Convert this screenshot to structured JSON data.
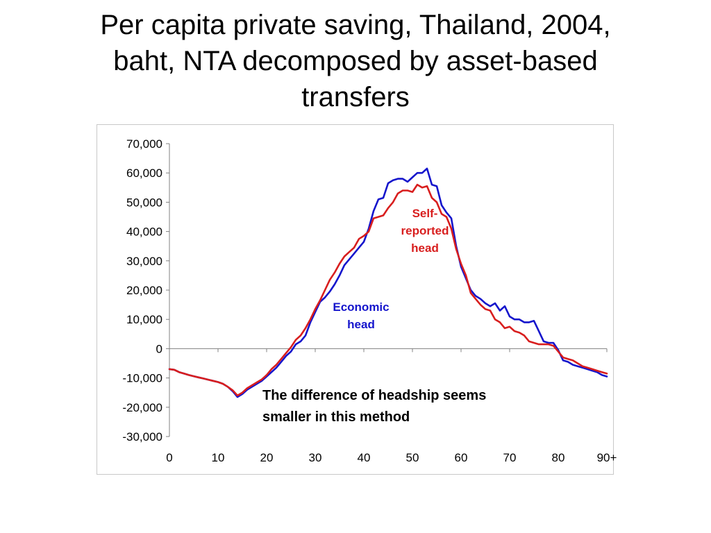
{
  "title_lines": [
    "Per capita private saving, Thailand, 2004,",
    "baht, NTA decomposed by asset-based",
    "transfers"
  ],
  "chart_data": {
    "type": "line",
    "title": "Per capita private saving, Thailand, 2004, baht, NTA decomposed by asset-based transfers",
    "xlabel": "",
    "ylabel": "",
    "xlim": [
      0,
      90
    ],
    "ylim": [
      -30000,
      70000
    ],
    "x_ticks": [
      0,
      10,
      20,
      30,
      40,
      50,
      60,
      70,
      80,
      90
    ],
    "x_tick_labels": [
      "0",
      "10",
      "20",
      "30",
      "40",
      "50",
      "60",
      "70",
      "80",
      "90+"
    ],
    "y_ticks": [
      70000,
      60000,
      50000,
      40000,
      30000,
      20000,
      10000,
      0,
      -10000,
      -20000,
      -30000
    ],
    "y_tick_labels": [
      "70,000",
      "60,000",
      "50,000",
      "40,000",
      "30,000",
      "20,000",
      "10,000",
      "0",
      "-10,000",
      "-20,000",
      "-30,000"
    ],
    "grid": false,
    "legend": "none (series labelled directly on plot)",
    "series": [
      {
        "name": "Economic head",
        "label_lines": [
          "Economic",
          "head"
        ],
        "color": "#1515cc",
        "x": [
          0,
          1,
          2,
          3,
          4,
          5,
          6,
          7,
          8,
          9,
          10,
          11,
          12,
          13,
          14,
          15,
          16,
          17,
          18,
          19,
          20,
          21,
          22,
          23,
          24,
          25,
          26,
          27,
          28,
          29,
          30,
          31,
          32,
          33,
          34,
          35,
          36,
          37,
          38,
          39,
          40,
          41,
          42,
          43,
          44,
          45,
          46,
          47,
          48,
          49,
          50,
          51,
          52,
          53,
          54,
          55,
          56,
          57,
          58,
          59,
          60,
          61,
          62,
          63,
          64,
          65,
          66,
          67,
          68,
          69,
          70,
          71,
          72,
          73,
          74,
          75,
          76,
          77,
          78,
          79,
          80,
          81,
          82,
          83,
          84,
          85,
          86,
          87,
          88,
          89,
          90
        ],
        "values": [
          -7000,
          -7200,
          -8000,
          -8500,
          -9000,
          -9400,
          -9800,
          -10200,
          -10600,
          -11000,
          -11400,
          -12000,
          -13000,
          -14500,
          -16500,
          -15500,
          -14000,
          -13000,
          -12000,
          -11000,
          -9500,
          -8000,
          -6500,
          -4500,
          -2500,
          -1000,
          1500,
          2500,
          4500,
          9000,
          12500,
          16000,
          17500,
          19500,
          22000,
          25000,
          28500,
          30500,
          32500,
          34500,
          36500,
          41000,
          47000,
          51000,
          51500,
          56500,
          57500,
          58000,
          58000,
          57000,
          58500,
          60000,
          60000,
          61500,
          56000,
          55500,
          49000,
          46500,
          44500,
          35000,
          28000,
          24000,
          20000,
          18000,
          17000,
          15500,
          14500,
          15500,
          13000,
          14500,
          11000,
          10000,
          10000,
          9000,
          9000,
          9500,
          6000,
          2500,
          2000,
          2000,
          -500,
          -4000,
          -4500,
          -5500,
          -6000,
          -6500,
          -7000,
          -7500,
          -8000,
          -9000,
          -9500
        ]
      },
      {
        "name": "Self-reported head",
        "label_lines": [
          "Self-",
          "reported",
          "head"
        ],
        "color": "#d81e1e",
        "x": [
          0,
          1,
          2,
          3,
          4,
          5,
          6,
          7,
          8,
          9,
          10,
          11,
          12,
          13,
          14,
          15,
          16,
          17,
          18,
          19,
          20,
          21,
          22,
          23,
          24,
          25,
          26,
          27,
          28,
          29,
          30,
          31,
          32,
          33,
          34,
          35,
          36,
          37,
          38,
          39,
          40,
          41,
          42,
          43,
          44,
          45,
          46,
          47,
          48,
          49,
          50,
          51,
          52,
          53,
          54,
          55,
          56,
          57,
          58,
          59,
          60,
          61,
          62,
          63,
          64,
          65,
          66,
          67,
          68,
          69,
          70,
          71,
          72,
          73,
          74,
          75,
          76,
          77,
          78,
          79,
          80,
          81,
          82,
          83,
          84,
          85,
          86,
          87,
          88,
          89,
          90
        ],
        "values": [
          -7000,
          -7200,
          -8000,
          -8500,
          -9000,
          -9400,
          -9800,
          -10200,
          -10600,
          -11000,
          -11400,
          -12000,
          -13000,
          -14200,
          -16000,
          -15000,
          -13500,
          -12500,
          -11500,
          -10500,
          -9000,
          -7000,
          -5500,
          -3500,
          -1500,
          500,
          3000,
          4500,
          7000,
          10000,
          13500,
          16500,
          20000,
          23500,
          26000,
          29000,
          31500,
          33000,
          34500,
          37500,
          38500,
          40000,
          44500,
          45000,
          45500,
          48000,
          50000,
          53000,
          54000,
          54000,
          53500,
          56000,
          55000,
          55500,
          51500,
          50000,
          46000,
          45000,
          41000,
          34000,
          29000,
          25000,
          19000,
          17000,
          15000,
          13500,
          13000,
          10000,
          9000,
          7000,
          7500,
          6000,
          5500,
          4500,
          2500,
          2000,
          1500,
          1500,
          1500,
          1000,
          -1000,
          -3000,
          -3500,
          -4000,
          -5000,
          -6000,
          -6500,
          -7000,
          -7500,
          -8000,
          -8500
        ]
      }
    ],
    "annotation_lines": [
      "The difference of headship seems",
      "smaller in this method"
    ]
  }
}
